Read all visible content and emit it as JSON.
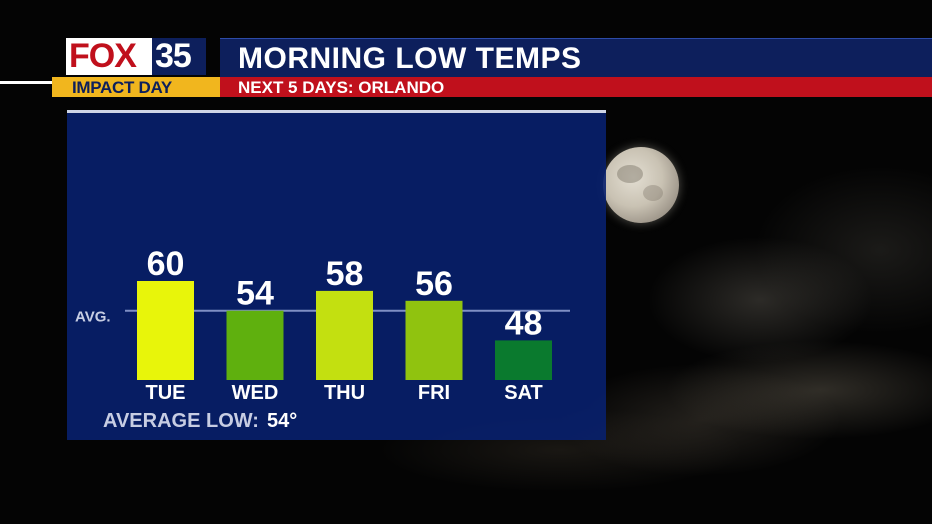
{
  "brand": {
    "logo_word": "FOX",
    "logo_number": "35",
    "tag": "IMPACT DAY",
    "colors": {
      "navy": "#0d1f5c",
      "red": "#c0101c",
      "gold": "#f1b61e"
    }
  },
  "header": {
    "title": "MORNING LOW TEMPS",
    "subtitle": "NEXT 5 DAYS: ORLANDO"
  },
  "chart_data": {
    "type": "bar",
    "categories": [
      "TUE",
      "WED",
      "THU",
      "FRI",
      "SAT"
    ],
    "values": [
      60,
      54,
      58,
      56,
      48
    ],
    "value_labels": [
      "60",
      "54",
      "58",
      "56",
      "48"
    ],
    "bar_colors": [
      "#e8f50a",
      "#5fb00e",
      "#c3e010",
      "#90c30f",
      "#0a7a2e"
    ],
    "reference_line": {
      "label": "AVG.",
      "value": 54
    },
    "title": "",
    "xlabel": "",
    "ylabel": "",
    "grid": false,
    "footer": {
      "label": "AVERAGE LOW:",
      "value": "54°"
    }
  }
}
